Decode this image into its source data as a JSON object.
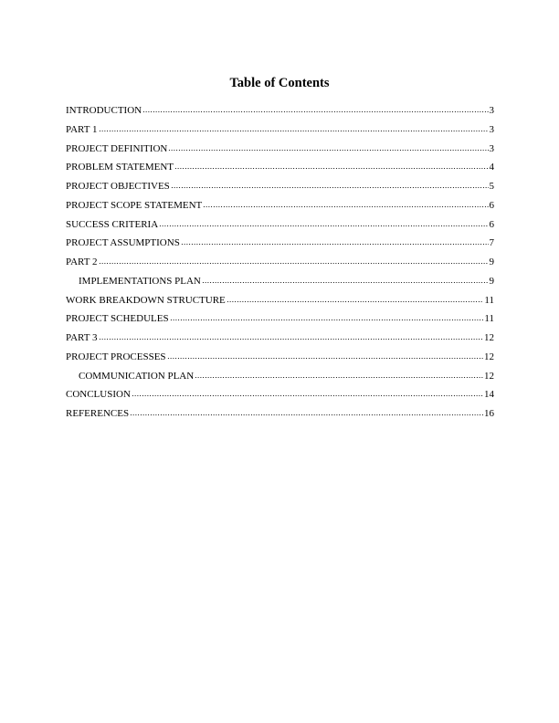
{
  "title": "Table of Contents",
  "entries": [
    {
      "label": "INTRODUCTION",
      "page": "3",
      "level": 1
    },
    {
      "label": "PART 1",
      "page": "3",
      "level": 1
    },
    {
      "label": "PROJECT DEFINITION",
      "page": "3",
      "level": 1
    },
    {
      "label": "PROBLEM STATEMENT",
      "page": "4",
      "level": 1
    },
    {
      "label": "PROJECT OBJECTIVES",
      "page": "5",
      "level": 1
    },
    {
      "label": "PROJECT SCOPE STATEMENT",
      "page": "6",
      "level": 1
    },
    {
      "label": "SUCCESS CRITERIA",
      "page": "6",
      "level": 1
    },
    {
      "label": "PROJECT ASSUMPTIONS ",
      "page": "7",
      "level": 1
    },
    {
      "label": "PART 2",
      "page": "9",
      "level": 1
    },
    {
      "label": "IMPLEMENTATIONS PLAN",
      "page": "9",
      "level": 2
    },
    {
      "label": "WORK BREAKDOWN STRUCTURE",
      "page": "11",
      "level": 1
    },
    {
      "label": "PROJECT SCHEDULES ",
      "page": "11",
      "level": 1
    },
    {
      "label": "PART 3",
      "page": "12",
      "level": 1
    },
    {
      "label": "PROJECT PROCESSES",
      "page": "12",
      "level": 1
    },
    {
      "label": "COMMUNICATION PLAN",
      "page": "12",
      "level": 2
    },
    {
      "label": "CONCLUSION",
      "page": "14",
      "level": 1
    },
    {
      "label": "REFERENCES",
      "page": "16",
      "level": 1
    }
  ]
}
